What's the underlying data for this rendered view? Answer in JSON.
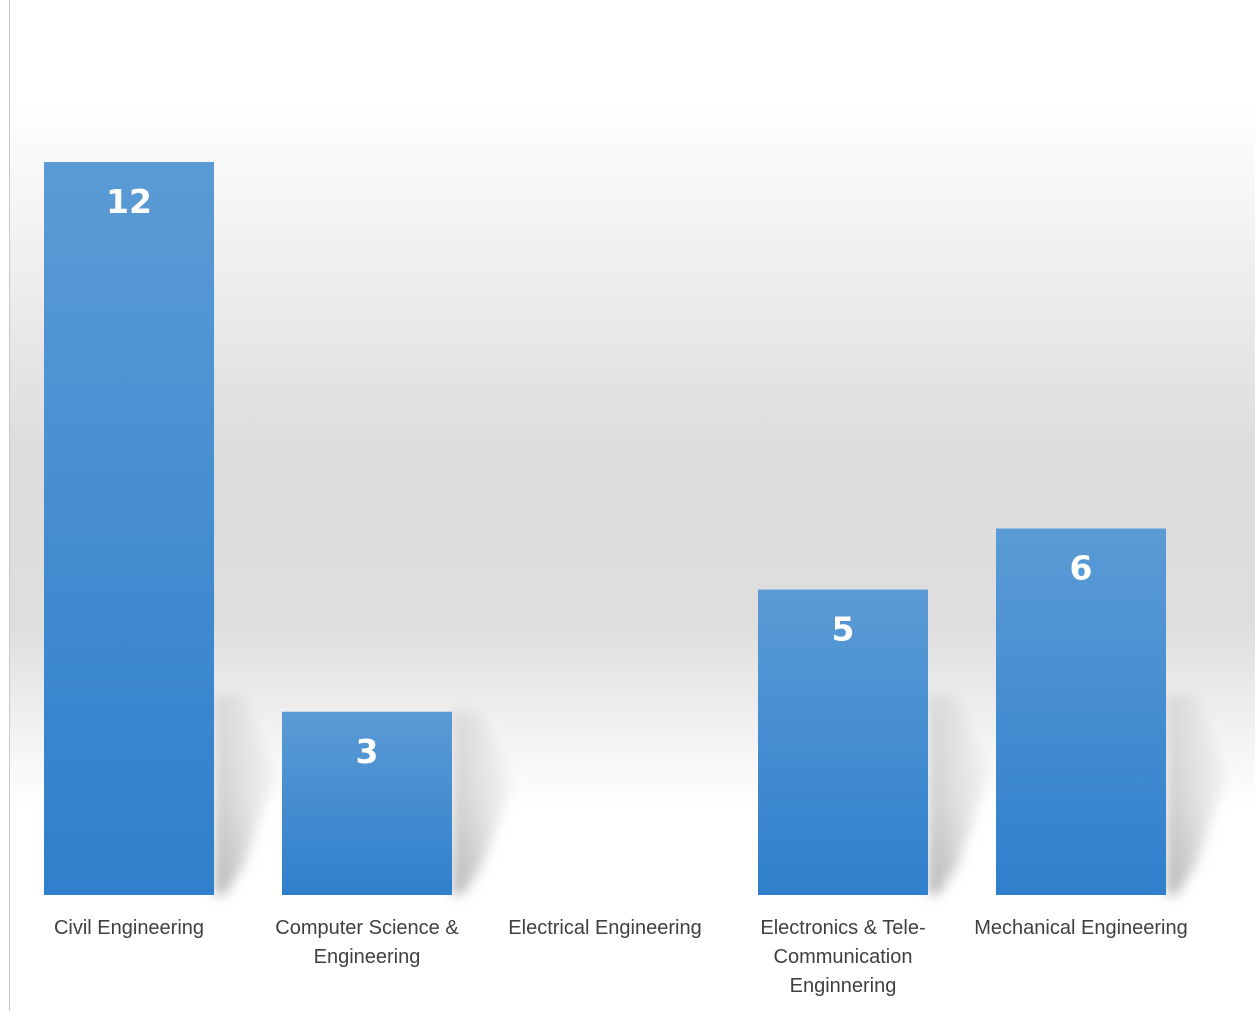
{
  "chart_data": {
    "type": "bar",
    "categories": [
      [
        "Civil Engineering"
      ],
      [
        "Computer Science &",
        "Engineering"
      ],
      [
        "Electrical Engineering"
      ],
      [
        "Electronics & Tele-",
        "Communication",
        "Enginnering"
      ],
      [
        "Mechanical Engineering"
      ]
    ],
    "values": [
      12,
      3,
      0,
      5,
      6
    ],
    "title": "",
    "xlabel": "",
    "ylabel": "",
    "ylim": [
      0,
      12
    ],
    "grid": false,
    "legend": "none",
    "data_labels": "inside-top",
    "colors": {
      "bar_top": "#5B9BD5",
      "bar_bottom": "#2F7FCC",
      "data_label": "#FFFFFF",
      "category_label": "#404040"
    }
  }
}
